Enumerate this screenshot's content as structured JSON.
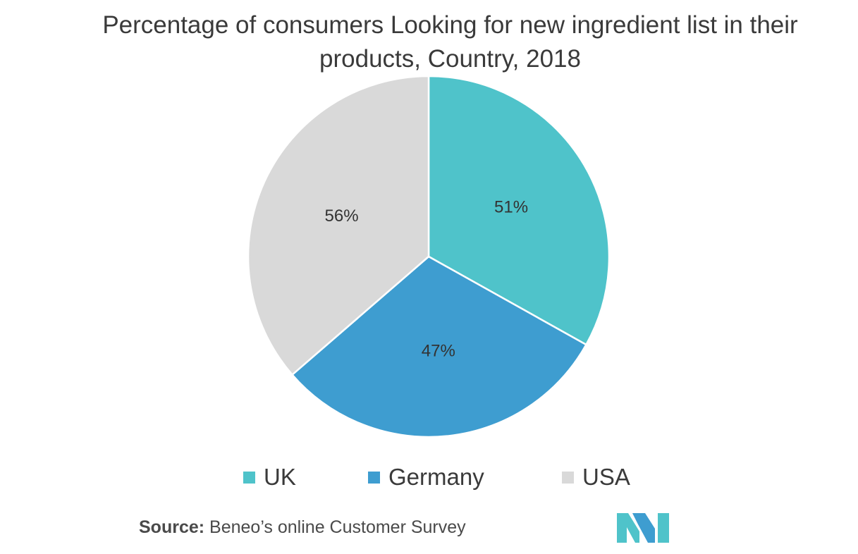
{
  "chart_data": {
    "type": "pie",
    "title": "Percentage of consumers Looking for new ingredient list in their products, Country, 2018",
    "slices": [
      {
        "label": "UK",
        "value": 51,
        "value_label": "51%",
        "color": "#4fc3ca"
      },
      {
        "label": "Germany",
        "value": 47,
        "value_label": "47%",
        "color": "#3e9dd0"
      },
      {
        "label": "USA",
        "value": 56,
        "value_label": "56%",
        "color": "#d9d9d9"
      }
    ],
    "legend_position": "bottom"
  },
  "source": {
    "label": "Source:",
    "text": " Beneo’s online Customer Survey"
  },
  "logo": {
    "icon": "mordor-intelligence-logo-icon",
    "colors": [
      "#4fc3ca",
      "#3e9dd0"
    ]
  }
}
